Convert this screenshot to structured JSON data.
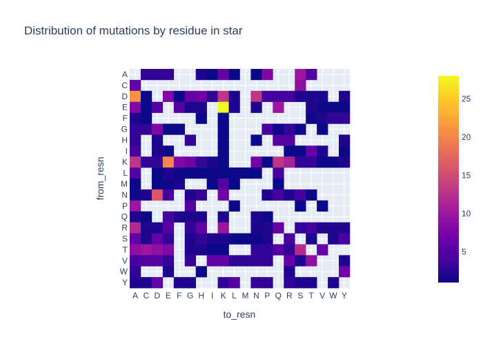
{
  "chart_data": {
    "type": "heatmap",
    "title": "Distribution of mutations by residue in star",
    "xlabel": "to_resn",
    "ylabel": "from_resn",
    "x_categories": [
      "A",
      "C",
      "D",
      "E",
      "F",
      "G",
      "H",
      "I",
      "K",
      "L",
      "M",
      "N",
      "P",
      "Q",
      "R",
      "S",
      "T",
      "V",
      "W",
      "Y"
    ],
    "y_categories": [
      "A",
      "C",
      "D",
      "E",
      "F",
      "G",
      "H",
      "I",
      "K",
      "L",
      "M",
      "N",
      "P",
      "Q",
      "R",
      "S",
      "T",
      "V",
      "W",
      "Y"
    ],
    "z": [
      [
        null,
        3,
        3,
        3,
        null,
        null,
        2,
        1,
        6,
        1,
        null,
        1,
        8,
        null,
        null,
        10,
        5,
        null,
        null,
        null
      ],
      [
        6,
        null,
        null,
        null,
        null,
        null,
        null,
        null,
        null,
        null,
        null,
        null,
        null,
        null,
        null,
        9,
        null,
        null,
        null,
        null
      ],
      [
        21,
        1,
        null,
        8,
        1,
        6,
        7,
        3,
        13,
        2,
        null,
        13,
        4,
        4,
        4,
        2,
        2,
        2,
        null,
        2
      ],
      [
        8,
        1,
        5,
        null,
        5,
        2,
        2,
        null,
        28,
        2,
        null,
        2,
        null,
        10,
        null,
        null,
        2,
        1,
        1,
        1
      ],
      [
        2,
        1,
        null,
        null,
        null,
        null,
        1,
        null,
        1,
        null,
        null,
        null,
        null,
        null,
        null,
        null,
        1,
        2,
        3,
        3
      ],
      [
        3,
        3,
        8,
        1,
        1,
        null,
        null,
        null,
        1,
        null,
        null,
        null,
        4,
        1,
        3,
        1,
        null,
        1,
        null,
        null
      ],
      [
        3,
        null,
        2,
        null,
        null,
        3,
        null,
        null,
        1,
        null,
        null,
        1,
        null,
        5,
        5,
        null,
        null,
        null,
        null,
        2
      ],
      [
        4,
        null,
        2,
        1,
        null,
        null,
        null,
        null,
        1,
        null,
        null,
        null,
        null,
        null,
        1,
        1,
        6,
        2,
        null,
        1
      ],
      [
        13,
        3,
        3,
        20,
        8,
        7,
        3,
        2,
        1,
        null,
        null,
        7,
        1,
        13,
        11,
        3,
        3,
        1,
        1,
        2
      ],
      [
        5,
        null,
        1,
        2,
        1,
        1,
        1,
        1,
        1,
        1,
        1,
        1,
        null,
        4,
        null,
        null,
        null,
        null,
        null,
        null
      ],
      [
        1,
        null,
        1,
        1,
        2,
        null,
        null,
        1,
        5,
        1,
        null,
        null,
        null,
        1,
        null,
        null,
        null,
        null,
        null,
        null
      ],
      [
        1,
        2,
        16,
        4,
        null,
        2,
        3,
        null,
        7,
        null,
        null,
        null,
        2,
        4,
        2,
        4,
        1,
        null,
        null,
        null
      ],
      [
        10,
        null,
        null,
        null,
        null,
        5,
        null,
        null,
        null,
        1,
        null,
        null,
        null,
        null,
        null,
        1,
        null,
        1,
        null,
        null
      ],
      [
        2,
        1,
        null,
        4,
        2,
        2,
        2,
        null,
        2,
        null,
        null,
        2,
        1,
        null,
        null,
        null,
        null,
        null,
        null,
        null
      ],
      [
        12,
        2,
        2,
        5,
        null,
        3,
        6,
        null,
        10,
        null,
        null,
        2,
        2,
        6,
        null,
        3,
        4,
        2,
        2,
        2
      ],
      [
        6,
        2,
        6,
        3,
        null,
        2,
        3,
        2,
        2,
        1,
        1,
        1,
        2,
        null,
        4,
        null,
        2,
        null,
        2,
        4
      ],
      [
        9,
        10,
        9,
        8,
        null,
        2,
        2,
        1,
        1,
        null,
        null,
        3,
        3,
        5,
        3,
        12,
        null,
        6,
        null,
        null
      ],
      [
        4,
        5,
        5,
        3,
        null,
        3,
        null,
        6,
        6,
        3,
        3,
        3,
        3,
        null,
        6,
        2,
        9,
        null,
        null,
        2
      ],
      [
        3,
        null,
        null,
        2,
        null,
        null,
        1,
        null,
        null,
        null,
        null,
        null,
        null,
        null,
        2,
        null,
        null,
        null,
        null,
        7
      ],
      [
        2,
        2,
        6,
        null,
        2,
        2,
        null,
        null,
        3,
        5,
        null,
        3,
        3,
        null,
        3,
        2,
        2,
        null,
        2,
        null
      ]
    ],
    "zmin": 1,
    "zmax": 28,
    "colorbar_ticks": [
      5,
      10,
      15,
      20,
      25
    ],
    "colorscale": [
      "#0d0887",
      "#46039f",
      "#7201a8",
      "#9c179e",
      "#bd3786",
      "#d8576b",
      "#ed7953",
      "#fb9f3a",
      "#fdca26",
      "#f0f921"
    ],
    "plot_background": "#e5ecf6",
    "grid_color": "#ffffff"
  }
}
